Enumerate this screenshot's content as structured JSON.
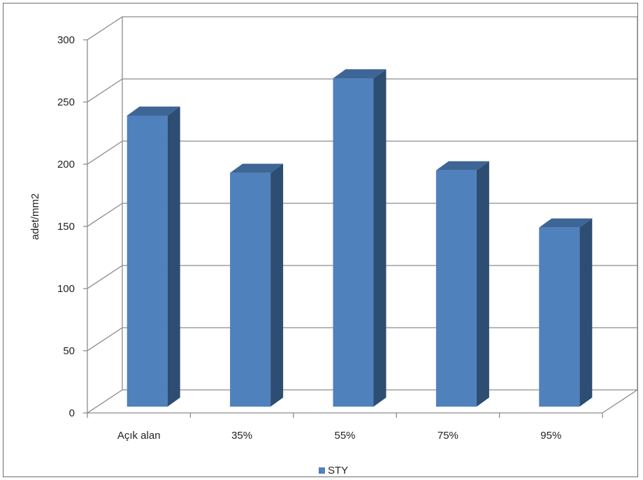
{
  "chart_data": {
    "type": "bar",
    "categories": [
      "Açık alan",
      "35%",
      "55%",
      "75%",
      "95%"
    ],
    "series": [
      {
        "name": "STY",
        "values": [
          234,
          188,
          264,
          190,
          144
        ]
      }
    ],
    "title": "",
    "xlabel": "",
    "ylabel": "adet/mm2",
    "ylim": [
      0,
      300
    ],
    "yticks": [
      0,
      50,
      100,
      150,
      200,
      250,
      300
    ],
    "grid": true,
    "legend": "bottom",
    "style": "3d-column",
    "colors": {
      "front": "#4f81bd",
      "side": "#2e4d73",
      "top": "#3d6596"
    }
  }
}
